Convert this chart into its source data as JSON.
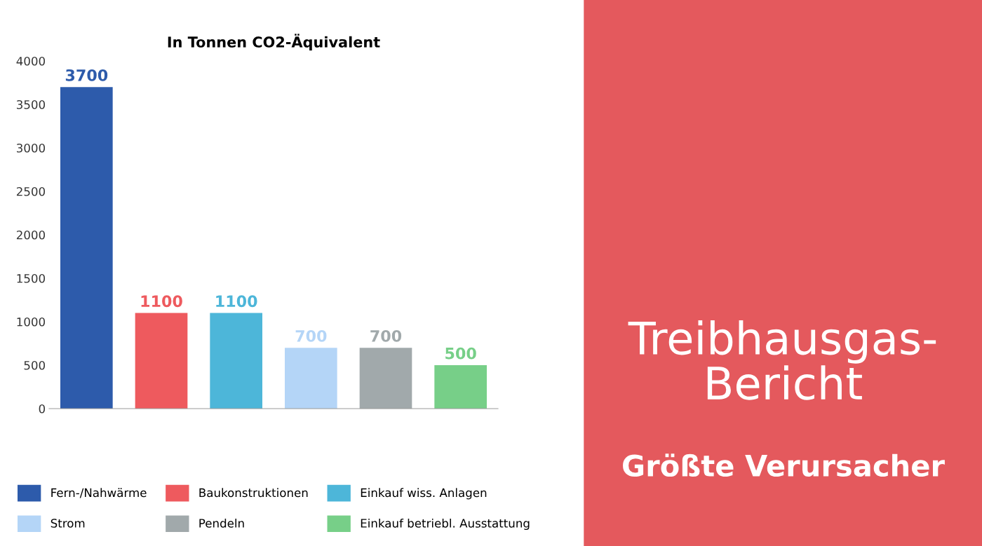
{
  "chart_data": {
    "type": "bar",
    "title": "In Tonnen CO2-Äquivalent",
    "categories": [
      null,
      null,
      null,
      null,
      null,
      null
    ],
    "series": [
      {
        "name": "Fern-/Nahwärme",
        "color": "#2d5bab",
        "values": [
          3700,
          null,
          null,
          null,
          null,
          null
        ]
      },
      {
        "name": "Baukonstruktionen",
        "color": "#ee5a5e",
        "values": [
          null,
          1100,
          null,
          null,
          null,
          null
        ]
      },
      {
        "name": "Einkauf wiss. Anlagen",
        "color": "#4db6d9",
        "values": [
          null,
          null,
          1100,
          null,
          null,
          null
        ]
      },
      {
        "name": "Strom",
        "color": "#b4d5f7",
        "values": [
          null,
          null,
          null,
          700,
          null,
          null
        ]
      },
      {
        "name": "Pendeln",
        "color": "#a1a9ab",
        "values": [
          null,
          null,
          null,
          null,
          700,
          null
        ]
      },
      {
        "name": "Einkauf betriebl. Ausstattung",
        "color": "#77cf88",
        "values": [
          null,
          null,
          null,
          null,
          null,
          500
        ]
      }
    ],
    "ylim": [
      0,
      4000
    ],
    "yticks": [
      0,
      500,
      1000,
      1500,
      2000,
      2500,
      3000,
      3500,
      4000
    ],
    "data_labels": true,
    "grid": false,
    "legend": "bottom",
    "annotations": [
      "Treibhausgas-Bericht",
      "Größte Verursacher"
    ]
  }
}
